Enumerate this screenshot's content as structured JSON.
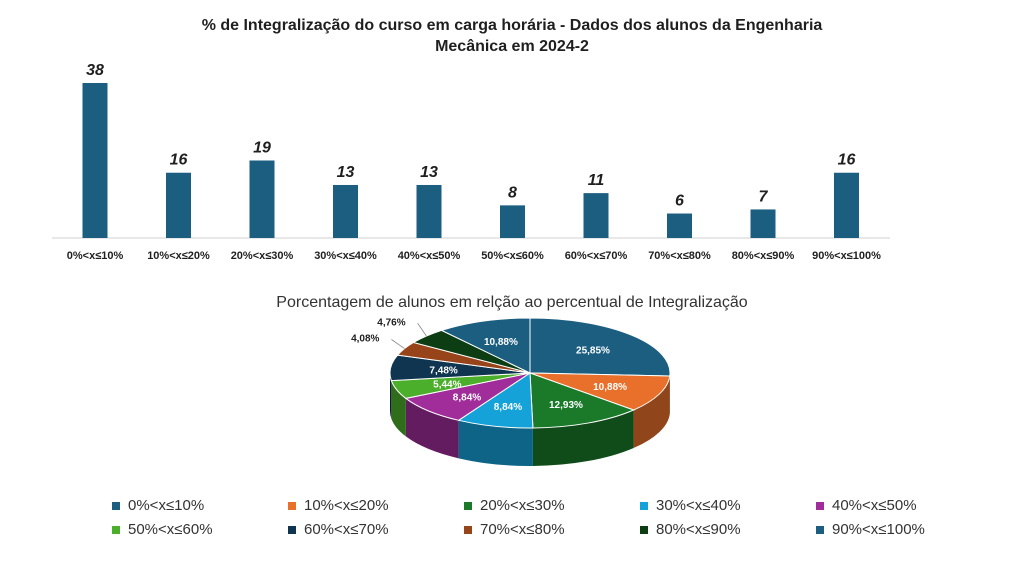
{
  "chart_data": [
    {
      "type": "bar",
      "title_line1": "% de Integralização do curso em carga horária - Dados dos alunos da Engenharia",
      "title_line2": "Mecânica em 2024-2",
      "categories": [
        "0%<x≤10%",
        "10%<x≤20%",
        "20%<x≤30%",
        "30%<x≤40%",
        "40%<x≤50%",
        "50%<x≤60%",
        "60%<x≤70%",
        "70%<x≤80%",
        "80%<x≤90%",
        "90%<x≤100%"
      ],
      "values": [
        38,
        16,
        19,
        13,
        13,
        8,
        11,
        6,
        7,
        16
      ],
      "data_labels": [
        "38",
        "16",
        "19",
        "13",
        "13",
        "8",
        "11",
        "6",
        "7",
        "16"
      ],
      "color": "#1b5e80",
      "ylim": [
        0,
        38
      ],
      "grid": false
    },
    {
      "type": "pie",
      "title": "Porcentagem de alunos em relção ao percentual de Integralização",
      "categories": [
        "0%<x≤10%",
        "10%<x≤20%",
        "20%<x≤30%",
        "30%<x≤40%",
        "40%<x≤50%",
        "50%<x≤60%",
        "60%<x≤70%",
        "70%<x≤80%",
        "80%<x≤90%",
        "90%<x≤100%"
      ],
      "values": [
        25.85,
        10.88,
        12.93,
        8.84,
        8.84,
        5.44,
        7.48,
        4.08,
        4.76,
        10.88
      ],
      "data_labels": [
        "25,85%",
        "10,88%",
        "12,93%",
        "8,84%",
        "8,84%",
        "5,44%",
        "7,48%",
        "4,08%",
        "4,76%",
        "10,88%"
      ],
      "colors": [
        "#1b5e80",
        "#e8702a",
        "#1a7a2a",
        "#15a2d8",
        "#a02d9a",
        "#4caf2c",
        "#0f3550",
        "#97441b",
        "#0d3d12",
        "#1b5e80"
      ],
      "legend_position": "bottom"
    }
  ]
}
